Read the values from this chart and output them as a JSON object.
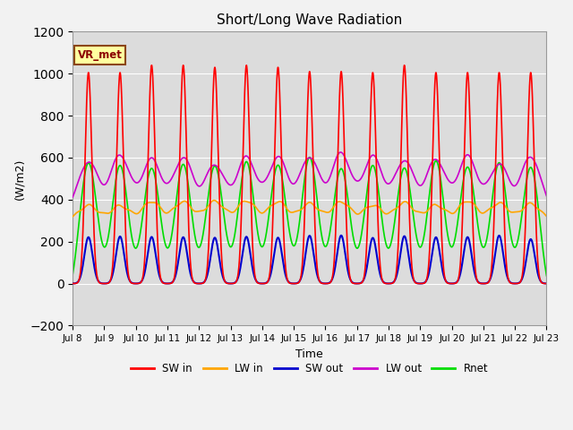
{
  "title": "Short/Long Wave Radiation",
  "xlabel": "Time",
  "ylabel": "(W/m2)",
  "ylim": [
    -200,
    1200
  ],
  "yticks": [
    -200,
    0,
    200,
    400,
    600,
    800,
    1000,
    1200
  ],
  "xtick_labels": [
    "Jul 8",
    "Jul 9",
    "Jul 10",
    "Jul 11",
    "Jul 12",
    "Jul 13",
    "Jul 14",
    "Jul 15",
    "Jul 16",
    "Jul 17",
    "Jul 18",
    "Jul 19",
    "Jul 20",
    "Jul 21",
    "Jul 22",
    "Jul 23"
  ],
  "label_box": "VR_met",
  "sw_in_color": "#ff0000",
  "lw_in_color": "#ffa500",
  "sw_out_color": "#0000cd",
  "lw_out_color": "#cc00cc",
  "rnet_color": "#00dd00",
  "background_color": "#dcdcdc",
  "plot_bg_color": "#dcdcdc",
  "grid_color": "#ffffff",
  "legend_labels": [
    "SW in",
    "LW in",
    "SW out",
    "LW out",
    "Rnet"
  ]
}
